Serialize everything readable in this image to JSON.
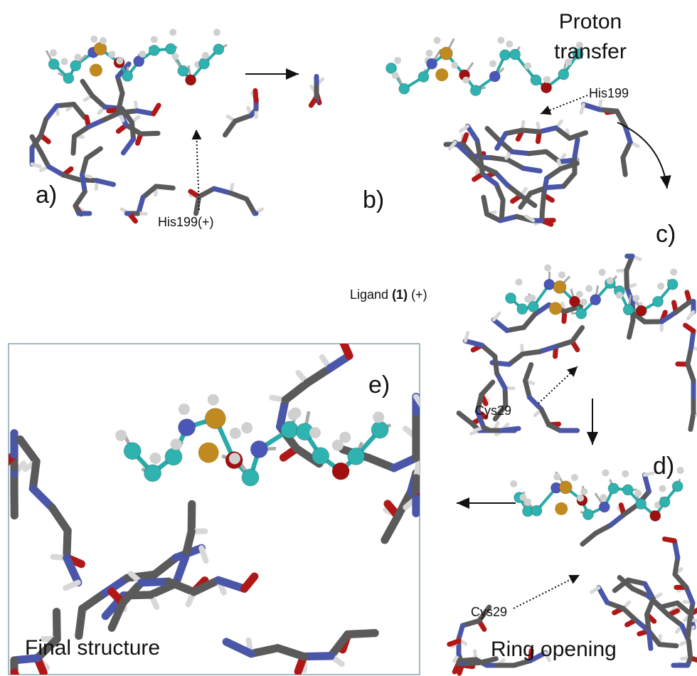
{
  "panels": {
    "a": {
      "label": "a)",
      "annotation": "His199(+)"
    },
    "b": {
      "label": "b)",
      "step": [
        "Proton",
        "transfer"
      ],
      "annotation": "His199"
    },
    "c": {
      "label": "c)",
      "ligand": [
        "Ligand ",
        "(1)",
        " (+)"
      ],
      "annotation": "Cys29"
    },
    "d": {
      "label": "d)",
      "step": "Ring opening",
      "annotation": "Cys29"
    },
    "e": {
      "label": "e)",
      "caption": "Final structure"
    }
  }
}
